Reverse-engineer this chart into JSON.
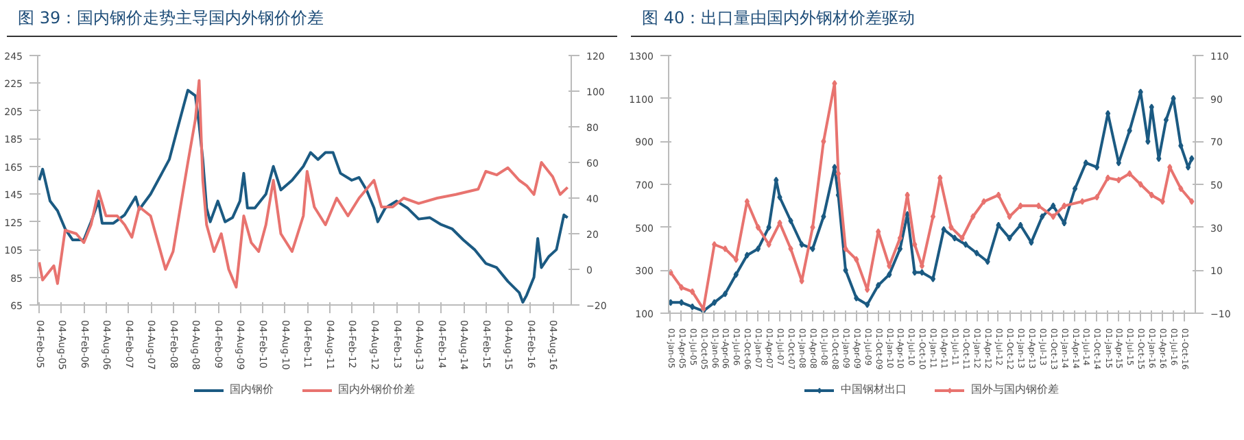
{
  "chart_data": [
    {
      "type": "line",
      "title": "图 39：国内钢价走势主导国内外钢价价差",
      "legend": "bottom",
      "grid": false,
      "marker": "none",
      "xlim": [
        "2005-01-20",
        "2016-12-31"
      ],
      "ylim": [
        65,
        245
      ],
      "yticks": [
        65,
        85,
        105,
        125,
        145,
        165,
        185,
        205,
        225,
        245
      ],
      "y2lim": [
        -20,
        120
      ],
      "y2ticks": [
        -20,
        0,
        20,
        40,
        60,
        80,
        100,
        120
      ],
      "xticks": [
        {
          "value": "2005-02-04",
          "label": "04-Feb-05"
        },
        {
          "value": "2005-08-04",
          "label": "04-Aug-05"
        },
        {
          "value": "2006-02-04",
          "label": "04-Feb-06"
        },
        {
          "value": "2006-08-04",
          "label": "04-Aug-06"
        },
        {
          "value": "2007-02-04",
          "label": "04-Feb-07"
        },
        {
          "value": "2007-08-04",
          "label": "04-Aug-07"
        },
        {
          "value": "2008-02-04",
          "label": "04-Feb-08"
        },
        {
          "value": "2008-08-04",
          "label": "04-Aug-08"
        },
        {
          "value": "2009-02-04",
          "label": "04-Feb-09"
        },
        {
          "value": "2009-08-04",
          "label": "04-Aug-09"
        },
        {
          "value": "2010-02-04",
          "label": "04-Feb-10"
        },
        {
          "value": "2010-08-04",
          "label": "04-Aug-10"
        },
        {
          "value": "2011-02-04",
          "label": "04-Feb-11"
        },
        {
          "value": "2011-08-04",
          "label": "04-Aug-11"
        },
        {
          "value": "2012-02-04",
          "label": "04-Feb-12"
        },
        {
          "value": "2012-08-04",
          "label": "04-Aug-12"
        },
        {
          "value": "2013-02-04",
          "label": "04-Feb-13"
        },
        {
          "value": "2013-08-04",
          "label": "04-Aug-13"
        },
        {
          "value": "2014-02-04",
          "label": "04-Feb-14"
        },
        {
          "value": "2014-08-04",
          "label": "04-Aug-14"
        },
        {
          "value": "2015-02-04",
          "label": "04-Feb-15"
        },
        {
          "value": "2015-08-04",
          "label": "04-Aug-15"
        },
        {
          "value": "2016-02-04",
          "label": "04-Feb-16"
        },
        {
          "value": "2016-08-04",
          "label": "04-Aug-16"
        }
      ],
      "series": [
        {
          "name": "国内钢价",
          "color": "#1b5a82",
          "x": [
            "2005-02",
            "2005-03",
            "2005-05",
            "2005-07",
            "2005-09",
            "2005-11",
            "2006-02",
            "2006-04",
            "2006-06",
            "2006-07",
            "2006-10",
            "2007-01",
            "2007-04",
            "2007-05",
            "2007-08",
            "2007-11",
            "2008-01",
            "2008-03",
            "2008-05",
            "2008-06",
            "2008-08",
            "2008-09",
            "2008-10",
            "2008-11",
            "2008-12",
            "2009-02",
            "2009-04",
            "2009-06",
            "2009-08",
            "2009-09",
            "2009-10",
            "2009-12",
            "2010-03",
            "2010-05",
            "2010-07",
            "2010-10",
            "2011-01",
            "2011-03",
            "2011-05",
            "2011-07",
            "2011-09",
            "2011-11",
            "2012-02",
            "2012-04",
            "2012-06",
            "2012-08",
            "2012-09",
            "2012-11",
            "2013-02",
            "2013-05",
            "2013-08",
            "2013-11",
            "2014-02",
            "2014-05",
            "2014-08",
            "2014-11",
            "2015-02",
            "2015-05",
            "2015-08",
            "2015-11",
            "2015-12",
            "2016-01",
            "2016-03",
            "2016-04",
            "2016-05",
            "2016-07",
            "2016-09",
            "2016-11",
            "2016-12"
          ],
          "values": [
            155,
            163,
            140,
            133,
            120,
            112,
            112,
            125,
            140,
            124,
            124,
            130,
            143,
            134,
            145,
            160,
            170,
            190,
            210,
            220,
            216,
            195,
            170,
            135,
            125,
            140,
            125,
            128,
            140,
            160,
            135,
            135,
            145,
            165,
            148,
            155,
            165,
            175,
            170,
            175,
            175,
            160,
            155,
            157,
            148,
            135,
            125,
            135,
            140,
            135,
            127,
            128,
            123,
            120,
            112,
            105,
            95,
            92,
            82,
            74,
            67,
            72,
            85,
            113,
            92,
            100,
            105,
            130,
            128
          ]
        },
        {
          "name": "国内外钢价价差",
          "color": "#e8736f",
          "axis": "y2",
          "x": [
            "2005-02",
            "2005-03",
            "2005-06",
            "2005-07",
            "2005-09",
            "2005-12",
            "2006-02",
            "2006-04",
            "2006-06",
            "2006-08",
            "2006-11",
            "2007-01",
            "2007-03",
            "2007-05",
            "2007-08",
            "2007-10",
            "2007-12",
            "2008-02",
            "2008-04",
            "2008-06",
            "2008-08",
            "2008-09",
            "2008-10",
            "2008-11",
            "2009-01",
            "2009-03",
            "2009-05",
            "2009-07",
            "2009-09",
            "2009-11",
            "2010-01",
            "2010-03",
            "2010-05",
            "2010-07",
            "2010-10",
            "2011-01",
            "2011-02",
            "2011-04",
            "2011-07",
            "2011-10",
            "2012-01",
            "2012-04",
            "2012-08",
            "2012-10",
            "2013-01",
            "2013-04",
            "2013-08",
            "2014-01",
            "2014-06",
            "2014-12",
            "2015-02",
            "2015-05",
            "2015-08",
            "2015-11",
            "2016-01",
            "2016-03",
            "2016-05",
            "2016-08",
            "2016-10",
            "2016-12"
          ],
          "values": [
            4,
            -6,
            2,
            -8,
            22,
            20,
            15,
            25,
            44,
            30,
            30,
            25,
            18,
            35,
            30,
            15,
            0,
            10,
            35,
            60,
            84,
            106,
            50,
            25,
            10,
            20,
            0,
            -10,
            30,
            15,
            10,
            25,
            50,
            20,
            10,
            30,
            55,
            35,
            25,
            40,
            30,
            40,
            50,
            35,
            35,
            40,
            37,
            40,
            42,
            45,
            55,
            53,
            57,
            50,
            47,
            42,
            60,
            52,
            42,
            46
          ]
        }
      ]
    },
    {
      "type": "line",
      "title": "图 40：出口量由国内外钢材价差驱动",
      "legend": "bottom",
      "grid": false,
      "marker": "diamond",
      "xlim": [
        "2004-12-15",
        "2016-12-31"
      ],
      "ylim": [
        100,
        1300
      ],
      "yticks": [
        100,
        300,
        500,
        700,
        900,
        1100,
        1300
      ],
      "y2lim": [
        -10,
        110
      ],
      "y2ticks": [
        -10,
        10,
        30,
        50,
        70,
        90,
        110
      ],
      "xticks": [
        {
          "value": "2005-01-01",
          "label": "01-Jan-05"
        },
        {
          "value": "2005-04-01",
          "label": "01-Apr-05"
        },
        {
          "value": "2005-07-01",
          "label": "01-Jul-05"
        },
        {
          "value": "2005-10-01",
          "label": "01-Oct-05"
        },
        {
          "value": "2006-01-01",
          "label": "01-Jan-06"
        },
        {
          "value": "2006-04-01",
          "label": "01-Apr-06"
        },
        {
          "value": "2006-07-01",
          "label": "01-Jul-06"
        },
        {
          "value": "2006-10-01",
          "label": "01-Oct-06"
        },
        {
          "value": "2007-01-01",
          "label": "01-Jan-07"
        },
        {
          "value": "2007-04-01",
          "label": "01-Apr-07"
        },
        {
          "value": "2007-07-01",
          "label": "01-Jul-07"
        },
        {
          "value": "2007-10-01",
          "label": "01-Oct-07"
        },
        {
          "value": "2008-01-01",
          "label": "01-Jan-08"
        },
        {
          "value": "2008-04-01",
          "label": "01-Apr-08"
        },
        {
          "value": "2008-07-01",
          "label": "01-Jul-08"
        },
        {
          "value": "2008-10-01",
          "label": "01-Oct-08"
        },
        {
          "value": "2009-01-01",
          "label": "01-Jan-09"
        },
        {
          "value": "2009-04-01",
          "label": "01-Apr-09"
        },
        {
          "value": "2009-07-01",
          "label": "01-Jul-09"
        },
        {
          "value": "2009-10-01",
          "label": "01-Oct-09"
        },
        {
          "value": "2010-01-01",
          "label": "01-Jan-10"
        },
        {
          "value": "2010-04-01",
          "label": "01-Apr-10"
        },
        {
          "value": "2010-07-01",
          "label": "01-Jul-10"
        },
        {
          "value": "2010-10-01",
          "label": "01-Oct-10"
        },
        {
          "value": "2011-01-01",
          "label": "01-Jan-11"
        },
        {
          "value": "2011-04-01",
          "label": "01-Apr-11"
        },
        {
          "value": "2011-07-01",
          "label": "01-Jul-11"
        },
        {
          "value": "2011-10-01",
          "label": "01-Oct-11"
        },
        {
          "value": "2012-01-01",
          "label": "01-Jan-12"
        },
        {
          "value": "2012-04-01",
          "label": "01-Apr-12"
        },
        {
          "value": "2012-07-01",
          "label": "01-Jul-12"
        },
        {
          "value": "2012-10-01",
          "label": "01-Oct-12"
        },
        {
          "value": "2013-01-01",
          "label": "01-Jan-13"
        },
        {
          "value": "2013-04-01",
          "label": "01-Apr-13"
        },
        {
          "value": "2013-07-01",
          "label": "01-Jul-13"
        },
        {
          "value": "2013-10-01",
          "label": "01-Oct-13"
        },
        {
          "value": "2014-01-01",
          "label": "01-Jan-14"
        },
        {
          "value": "2014-04-01",
          "label": "01-Apr-14"
        },
        {
          "value": "2014-07-01",
          "label": "01-Jul-14"
        },
        {
          "value": "2014-10-01",
          "label": "01-Oct-14"
        },
        {
          "value": "2015-01-01",
          "label": "01-Jan-15"
        },
        {
          "value": "2015-04-01",
          "label": "01-Apr-15"
        },
        {
          "value": "2015-07-01",
          "label": "01-Jul-15"
        },
        {
          "value": "2015-10-01",
          "label": "01-Oct-15"
        },
        {
          "value": "2016-01-01",
          "label": "01-Jan-16"
        },
        {
          "value": "2016-04-01",
          "label": "01-Apr-16"
        },
        {
          "value": "2016-07-01",
          "label": "01-Jul-16"
        },
        {
          "value": "2016-10-01",
          "label": "01-Oct-16"
        }
      ],
      "series": [
        {
          "name": "中国钢材出口",
          "color": "#1b5a82",
          "x": [
            "2005-01",
            "2005-04",
            "2005-07",
            "2005-10",
            "2006-01",
            "2006-04",
            "2006-07",
            "2006-10",
            "2007-01",
            "2007-04",
            "2007-06",
            "2007-07",
            "2007-10",
            "2008-01",
            "2008-04",
            "2008-07",
            "2008-10",
            "2008-11",
            "2009-01",
            "2009-04",
            "2009-07",
            "2009-10",
            "2010-01",
            "2010-04",
            "2010-06",
            "2010-08",
            "2010-10",
            "2011-01",
            "2011-04",
            "2011-07",
            "2011-10",
            "2012-01",
            "2012-04",
            "2012-07",
            "2012-10",
            "2013-01",
            "2013-04",
            "2013-07",
            "2013-10",
            "2014-01",
            "2014-04",
            "2014-07",
            "2014-10",
            "2015-01",
            "2015-04",
            "2015-07",
            "2015-10",
            "2015-12",
            "2016-01",
            "2016-03",
            "2016-05",
            "2016-07",
            "2016-09",
            "2016-11",
            "2016-12"
          ],
          "values": [
            150,
            150,
            130,
            110,
            150,
            190,
            280,
            370,
            400,
            500,
            720,
            640,
            530,
            420,
            400,
            550,
            780,
            650,
            300,
            170,
            140,
            230,
            280,
            400,
            560,
            290,
            290,
            260,
            490,
            450,
            420,
            380,
            340,
            510,
            450,
            510,
            430,
            550,
            600,
            520,
            680,
            800,
            780,
            1030,
            800,
            950,
            1130,
            900,
            1060,
            820,
            1000,
            1100,
            880,
            780,
            820
          ]
        },
        {
          "name": "国外与国内钢价差",
          "color": "#e8736f",
          "axis": "y2",
          "x": [
            "2005-01",
            "2005-04",
            "2005-07",
            "2005-10",
            "2006-01",
            "2006-04",
            "2006-07",
            "2006-10",
            "2007-01",
            "2007-04",
            "2007-07",
            "2007-10",
            "2008-01",
            "2008-04",
            "2008-07",
            "2008-10",
            "2008-11",
            "2009-01",
            "2009-04",
            "2009-07",
            "2009-10",
            "2010-01",
            "2010-04",
            "2010-06",
            "2010-08",
            "2010-10",
            "2011-01",
            "2011-03",
            "2011-06",
            "2011-09",
            "2011-12",
            "2012-03",
            "2012-07",
            "2012-10",
            "2013-01",
            "2013-06",
            "2013-10",
            "2014-01",
            "2014-06",
            "2014-10",
            "2015-01",
            "2015-04",
            "2015-07",
            "2015-10",
            "2016-01",
            "2016-04",
            "2016-06",
            "2016-09",
            "2016-12"
          ],
          "values": [
            9,
            2,
            0,
            -8,
            22,
            20,
            15,
            42,
            30,
            22,
            32,
            20,
            5,
            30,
            70,
            97,
            55,
            20,
            15,
            1,
            28,
            12,
            25,
            45,
            22,
            12,
            35,
            53,
            30,
            25,
            35,
            42,
            45,
            35,
            40,
            40,
            35,
            40,
            42,
            44,
            53,
            52,
            55,
            50,
            45,
            42,
            58,
            48,
            42
          ]
        }
      ]
    }
  ]
}
